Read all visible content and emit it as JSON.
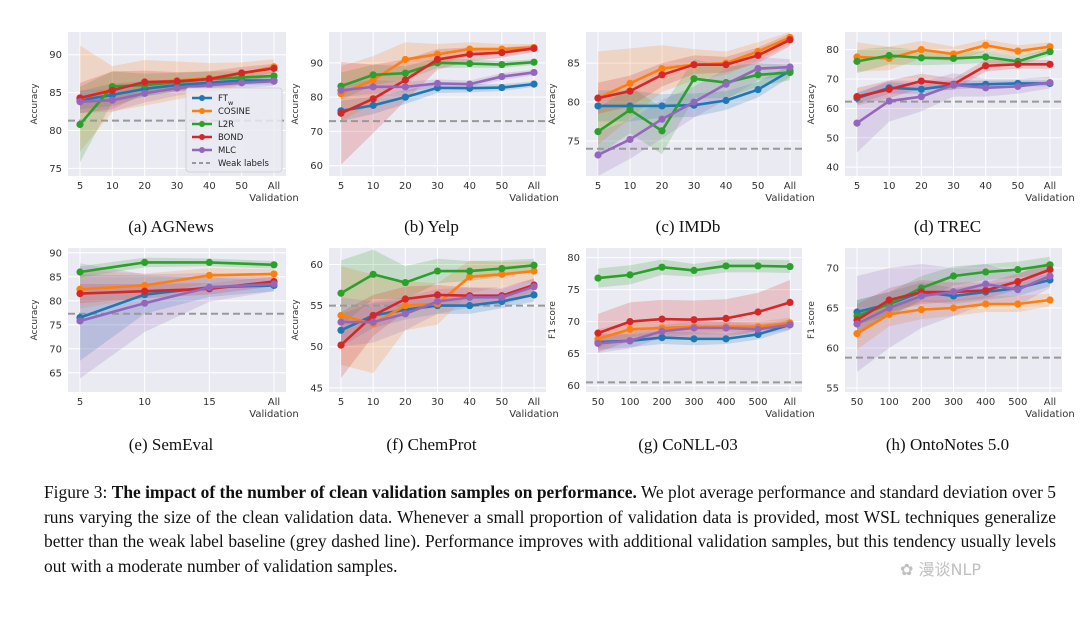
{
  "figure_label": "Figure 3:",
  "figure_title": "The impact of the number of clean validation samples on performance.",
  "caption_body": "We plot average performance and standard deviation over 5 runs varying the size of the clean validation data. Whenever a small proportion of validation data is provided, most WSL techniques generalize better than the weak label baseline (grey dashed line). Performance improves with additional validation samples, but this tendency usually levels out with a moderate number of validation samples.",
  "watermark": "✿ 漫谈NLP",
  "legend": [
    {
      "name": "FT_w",
      "main": "FT",
      "sub": "w",
      "color": "#1f77b4",
      "style": "line"
    },
    {
      "name": "COSINE",
      "main": "COSINE",
      "color": "#ff7f0e",
      "style": "line"
    },
    {
      "name": "L2R",
      "main": "L2R",
      "color": "#2ca02c",
      "style": "line"
    },
    {
      "name": "BOND",
      "main": "BOND",
      "color": "#d62728",
      "style": "line"
    },
    {
      "name": "MLC",
      "main": "MLC",
      "color": "#9467bd",
      "style": "line"
    },
    {
      "name": "Weak labels",
      "main": "Weak labels",
      "color": "#999999",
      "style": "dashed"
    }
  ],
  "colors": {
    "FT_w": "#1f77b4",
    "COSINE": "#ff7f0e",
    "L2R": "#2ca02c",
    "BOND": "#d62728",
    "MLC": "#9467bd",
    "weak": "#999999",
    "panel_bg": "#eaeaf2",
    "grid": "#ffffff"
  },
  "chart_data": [
    {
      "id": "a",
      "type": "line",
      "title": "(a) AGNews",
      "ylabel": "Accuracy",
      "xlabel": "",
      "categories": [
        "5",
        "10",
        "20",
        "30",
        "40",
        "50",
        "All"
      ],
      "x_extra_label": "Validation",
      "ylim": [
        74,
        93
      ],
      "yticks": [
        75,
        80,
        85,
        90
      ],
      "weak_label": 81.3,
      "show_legend": true,
      "series": [
        {
          "name": "FT_w",
          "values": [
            84.0,
            84.7,
            85.5,
            86.0,
            86.3,
            86.6,
            86.6
          ],
          "std": [
            1.2,
            1.5,
            1.0,
            0.8,
            0.7,
            0.6,
            0.5
          ]
        },
        {
          "name": "COSINE",
          "values": [
            84.2,
            85.5,
            86.3,
            86.6,
            86.9,
            87.5,
            88.4
          ],
          "std": [
            7.0,
            3.0,
            3.0,
            2.5,
            2.0,
            1.5,
            1.0
          ]
        },
        {
          "name": "L2R",
          "values": [
            80.8,
            85.8,
            86.0,
            86.4,
            86.8,
            87.0,
            87.2
          ],
          "std": [
            5.0,
            2.0,
            1.5,
            1.2,
            1.0,
            0.8,
            0.6
          ]
        },
        {
          "name": "BOND",
          "values": [
            84.3,
            85.3,
            86.4,
            86.5,
            86.8,
            87.6,
            88.2
          ],
          "std": [
            2.0,
            2.5,
            1.5,
            1.2,
            1.0,
            0.8,
            0.6
          ]
        },
        {
          "name": "MLC",
          "values": [
            83.8,
            84.0,
            84.9,
            85.6,
            86.0,
            86.3,
            86.5
          ],
          "std": [
            1.5,
            1.5,
            1.2,
            1.0,
            0.8,
            0.7,
            0.6
          ]
        }
      ]
    },
    {
      "id": "b",
      "type": "line",
      "title": "(b) Yelp",
      "ylabel": "Accuracy",
      "xlabel": "",
      "categories": [
        "5",
        "10",
        "20",
        "30",
        "40",
        "50",
        "All"
      ],
      "x_extra_label": "Validation",
      "ylim": [
        57,
        99
      ],
      "yticks": [
        60,
        70,
        80,
        90
      ],
      "weak_label": 73.0,
      "show_legend": false,
      "series": [
        {
          "name": "FT_w",
          "values": [
            76.0,
            77.6,
            80.0,
            82.7,
            82.6,
            82.8,
            83.8
          ],
          "std": [
            3.0,
            2.5,
            2.0,
            1.5,
            1.2,
            1.0,
            0.8
          ]
        },
        {
          "name": "COSINE",
          "values": [
            81.0,
            85.0,
            91.0,
            92.5,
            94.0,
            94.0,
            94.5
          ],
          "std": [
            8.0,
            7.0,
            5.0,
            3.0,
            2.0,
            1.5,
            1.0
          ]
        },
        {
          "name": "L2R",
          "values": [
            83.2,
            86.5,
            87.0,
            90.0,
            89.8,
            89.5,
            90.2
          ],
          "std": [
            4.0,
            3.0,
            2.0,
            1.5,
            1.2,
            1.0,
            0.8
          ]
        },
        {
          "name": "BOND",
          "values": [
            75.3,
            79.5,
            85.0,
            91.0,
            92.5,
            93.0,
            94.2
          ],
          "std": [
            15.0,
            10.0,
            6.0,
            3.0,
            2.0,
            1.5,
            1.0
          ]
        },
        {
          "name": "MLC",
          "values": [
            82.0,
            83.0,
            83.0,
            84.0,
            83.8,
            86.0,
            87.2
          ],
          "std": [
            2.0,
            2.0,
            1.5,
            1.2,
            1.0,
            1.0,
            0.8
          ]
        }
      ]
    },
    {
      "id": "c",
      "type": "line",
      "title": "(c) IMDb",
      "ylabel": "Accuracy",
      "xlabel": "",
      "categories": [
        "5",
        "10",
        "20",
        "30",
        "40",
        "50",
        "All"
      ],
      "x_extra_label": "Validation",
      "ylim": [
        70.5,
        89
      ],
      "yticks": [
        75,
        80,
        85
      ],
      "weak_label": 74.0,
      "show_legend": false,
      "series": [
        {
          "name": "FT_w",
          "values": [
            79.5,
            79.5,
            79.5,
            79.6,
            80.2,
            81.6,
            84.0
          ],
          "std": [
            2.0,
            2.0,
            1.5,
            1.5,
            1.2,
            1.0,
            0.8
          ]
        },
        {
          "name": "COSINE",
          "values": [
            80.5,
            82.4,
            84.3,
            84.8,
            85.0,
            86.5,
            88.3
          ],
          "std": [
            6.0,
            4.5,
            3.0,
            2.0,
            1.5,
            1.2,
            0.8
          ]
        },
        {
          "name": "L2R",
          "values": [
            76.2,
            79.0,
            76.3,
            83.0,
            82.5,
            83.5,
            83.8
          ],
          "std": [
            3.0,
            3.0,
            3.0,
            2.5,
            2.0,
            1.5,
            1.0
          ]
        },
        {
          "name": "BOND",
          "values": [
            80.5,
            81.4,
            83.5,
            84.8,
            84.8,
            86.0,
            88.0
          ],
          "std": [
            2.0,
            2.0,
            1.5,
            1.2,
            1.0,
            1.0,
            0.8
          ]
        },
        {
          "name": "MLC",
          "values": [
            73.2,
            75.2,
            77.8,
            80.0,
            82.3,
            84.3,
            84.5
          ],
          "std": [
            3.0,
            2.5,
            2.5,
            2.0,
            2.0,
            1.5,
            1.0
          ]
        }
      ]
    },
    {
      "id": "d",
      "type": "line",
      "title": "(d) TREC",
      "ylabel": "Accuracy",
      "xlabel": "",
      "categories": [
        "5",
        "10",
        "20",
        "30",
        "40",
        "50",
        "All"
      ],
      "x_extra_label": "Validation",
      "ylim": [
        37,
        86
      ],
      "yticks": [
        40,
        50,
        60,
        70,
        80
      ],
      "weak_label": 62.3,
      "show_legend": false,
      "series": [
        {
          "name": "FT_w",
          "values": [
            63.5,
            67.0,
            66.5,
            68.0,
            68.2,
            68.5,
            68.5
          ],
          "std": [
            2.0,
            2.0,
            1.5,
            1.5,
            1.2,
            1.0,
            1.0
          ]
        },
        {
          "name": "COSINE",
          "values": [
            77.5,
            77.0,
            80.0,
            78.5,
            81.5,
            79.5,
            81.0
          ],
          "std": [
            5.0,
            4.0,
            3.0,
            2.5,
            2.0,
            2.0,
            1.5
          ]
        },
        {
          "name": "L2R",
          "values": [
            76.0,
            78.0,
            77.2,
            77.0,
            77.5,
            76.0,
            79.3
          ],
          "std": [
            4.0,
            3.0,
            2.5,
            2.0,
            2.0,
            1.5,
            1.2
          ]
        },
        {
          "name": "BOND",
          "values": [
            64.0,
            66.5,
            69.3,
            68.2,
            74.5,
            75.0,
            75.0
          ],
          "std": [
            3.0,
            3.0,
            2.5,
            2.0,
            2.0,
            1.5,
            1.5
          ]
        },
        {
          "name": "MLC",
          "values": [
            55.0,
            62.5,
            64.0,
            68.0,
            67.0,
            67.5,
            68.8
          ],
          "std": [
            10.0,
            7.0,
            5.0,
            4.0,
            3.0,
            2.5,
            2.0
          ]
        }
      ]
    },
    {
      "id": "e",
      "type": "line",
      "title": "(e) SemEval",
      "ylabel": "Accuracy",
      "xlabel": "",
      "categories": [
        "5",
        "10",
        "15",
        "All"
      ],
      "x_extra_label": "Validation",
      "ylim": [
        61,
        91
      ],
      "yticks": [
        65,
        70,
        75,
        80,
        85,
        90
      ],
      "weak_label": 77.3,
      "show_legend": false,
      "series": [
        {
          "name": "FT_w",
          "values": [
            76.5,
            81.3,
            82.8,
            83.2
          ],
          "std": [
            9.0,
            4.0,
            2.0,
            1.2
          ]
        },
        {
          "name": "COSINE",
          "values": [
            82.4,
            83.2,
            85.3,
            85.6
          ],
          "std": [
            4.0,
            2.5,
            1.5,
            1.0
          ]
        },
        {
          "name": "L2R",
          "values": [
            86.0,
            88.0,
            88.0,
            87.5
          ],
          "std": [
            1.2,
            1.0,
            0.8,
            0.8
          ]
        },
        {
          "name": "BOND",
          "values": [
            81.5,
            82.0,
            82.5,
            84.0
          ],
          "std": [
            2.0,
            1.5,
            1.2,
            1.0
          ]
        },
        {
          "name": "MLC",
          "values": [
            75.8,
            79.5,
            82.8,
            83.5
          ],
          "std": [
            12.0,
            6.0,
            3.0,
            1.5
          ]
        }
      ]
    },
    {
      "id": "f",
      "type": "line",
      "title": "(f) ChemProt",
      "ylabel": "Accuracy",
      "xlabel": "",
      "categories": [
        "5",
        "10",
        "20",
        "30",
        "40",
        "50",
        "All"
      ],
      "x_extra_label": "Validation",
      "ylim": [
        44.5,
        62
      ],
      "yticks": [
        45,
        50,
        55,
        60
      ],
      "weak_label": 55.0,
      "show_legend": false,
      "series": [
        {
          "name": "FT_w",
          "values": [
            52.0,
            53.8,
            54.5,
            55.0,
            55.0,
            55.5,
            56.3
          ],
          "std": [
            2.0,
            1.5,
            1.2,
            1.0,
            1.0,
            0.8,
            0.8
          ]
        },
        {
          "name": "COSINE",
          "values": [
            53.8,
            52.8,
            55.0,
            55.2,
            58.5,
            58.8,
            59.2
          ],
          "std": [
            6.0,
            6.0,
            3.0,
            2.5,
            2.0,
            1.5,
            1.2
          ]
        },
        {
          "name": "L2R",
          "values": [
            56.5,
            58.8,
            57.8,
            59.2,
            59.2,
            59.5,
            59.9
          ],
          "std": [
            4.0,
            3.0,
            2.0,
            1.5,
            1.2,
            1.0,
            0.8
          ]
        },
        {
          "name": "BOND",
          "values": [
            50.2,
            53.8,
            55.8,
            56.3,
            56.2,
            56.2,
            57.5
          ],
          "std": [
            4.0,
            2.5,
            1.5,
            1.2,
            1.0,
            1.0,
            0.8
          ]
        },
        {
          "name": "MLC",
          "values": [
            53.0,
            53.0,
            54.0,
            55.5,
            56.0,
            56.0,
            57.3
          ],
          "std": [
            3.0,
            2.5,
            2.0,
            1.5,
            1.2,
            1.0,
            1.0
          ]
        }
      ]
    },
    {
      "id": "g",
      "type": "line",
      "title": "(g) CoNLL-03",
      "ylabel": "F1 score",
      "xlabel": "",
      "categories": [
        "50",
        "100",
        "200",
        "300",
        "400",
        "500",
        "All"
      ],
      "x_extra_label": "Validation",
      "ylim": [
        59,
        81.5
      ],
      "yticks": [
        60,
        65,
        70,
        75,
        80
      ],
      "weak_label": 60.5,
      "show_legend": false,
      "series": [
        {
          "name": "FT_w",
          "values": [
            66.8,
            67.0,
            67.5,
            67.3,
            67.3,
            68.0,
            69.5
          ],
          "std": [
            1.2,
            1.0,
            1.0,
            1.0,
            0.8,
            0.8,
            0.8
          ]
        },
        {
          "name": "COSINE",
          "values": [
            67.3,
            68.8,
            69.0,
            69.2,
            69.2,
            69.2,
            69.8
          ],
          "std": [
            1.5,
            1.2,
            1.0,
            1.0,
            0.8,
            0.8,
            0.8
          ]
        },
        {
          "name": "L2R",
          "values": [
            76.8,
            77.3,
            78.5,
            78.0,
            78.7,
            78.7,
            78.6
          ],
          "std": [
            1.5,
            1.5,
            1.2,
            1.0,
            1.0,
            1.0,
            1.0
          ]
        },
        {
          "name": "BOND",
          "values": [
            68.2,
            70.0,
            70.4,
            70.3,
            70.5,
            71.5,
            73.0
          ],
          "std": [
            3.0,
            3.0,
            3.0,
            3.0,
            3.0,
            3.0,
            3.5
          ]
        },
        {
          "name": "MLC",
          "values": [
            66.6,
            67.0,
            68.5,
            69.0,
            69.0,
            68.8,
            69.5
          ],
          "std": [
            1.5,
            1.2,
            1.0,
            1.0,
            1.0,
            0.8,
            0.8
          ]
        }
      ]
    },
    {
      "id": "h",
      "type": "line",
      "title": "(h) OntoNotes 5.0",
      "ylabel": "F1 score",
      "xlabel": "",
      "categories": [
        "50",
        "100",
        "200",
        "300",
        "400",
        "500",
        "All"
      ],
      "x_extra_label": "Validation",
      "ylim": [
        54.5,
        72.5
      ],
      "yticks": [
        55,
        60,
        65,
        70
      ],
      "weak_label": 58.8,
      "show_legend": false,
      "series": [
        {
          "name": "FT_w",
          "values": [
            64.5,
            65.5,
            67.0,
            66.5,
            67.0,
            67.5,
            68.5
          ],
          "std": [
            1.5,
            1.5,
            1.2,
            1.0,
            1.0,
            1.0,
            0.8
          ]
        },
        {
          "name": "COSINE",
          "values": [
            61.8,
            64.2,
            64.8,
            65.0,
            65.5,
            65.5,
            66.0
          ],
          "std": [
            2.0,
            1.5,
            1.2,
            1.0,
            1.0,
            1.0,
            0.8
          ]
        },
        {
          "name": "L2R",
          "values": [
            64.0,
            65.5,
            67.5,
            69.0,
            69.5,
            69.8,
            70.4
          ],
          "std": [
            2.0,
            1.5,
            1.5,
            1.2,
            1.0,
            1.0,
            1.0
          ]
        },
        {
          "name": "BOND",
          "values": [
            63.5,
            66.0,
            67.0,
            67.0,
            67.2,
            68.3,
            69.8
          ],
          "std": [
            2.0,
            1.5,
            1.5,
            1.2,
            1.0,
            1.0,
            1.0
          ]
        },
        {
          "name": "MLC",
          "values": [
            63.0,
            65.0,
            66.5,
            67.0,
            68.0,
            67.3,
            69.0
          ],
          "std": [
            6.0,
            5.0,
            4.0,
            3.0,
            2.5,
            2.0,
            1.5
          ]
        }
      ]
    }
  ]
}
